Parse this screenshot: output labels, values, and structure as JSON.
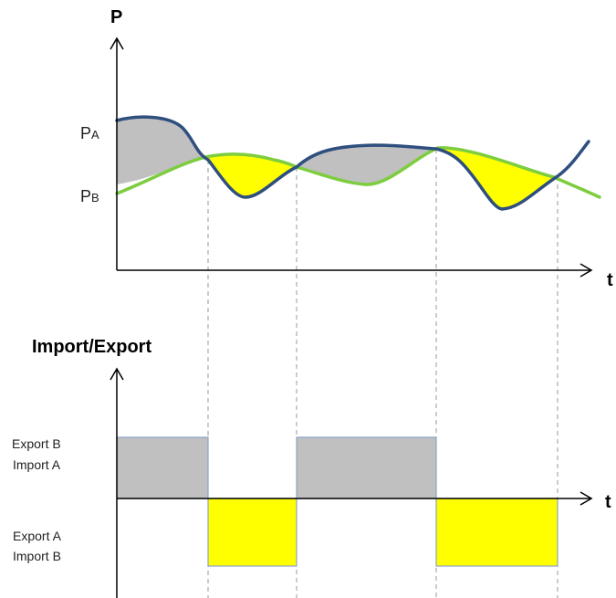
{
  "top_chart": {
    "y_axis_title": "P",
    "x_axis_title": "t",
    "level_a": {
      "main": "P",
      "sub": "A"
    },
    "level_b": {
      "main": "P",
      "sub": "B"
    }
  },
  "bottom_chart": {
    "y_axis_title": "Import/Export",
    "x_axis_title": "t",
    "upper_state": {
      "line1": "Export B",
      "line2": "Import A"
    },
    "lower_state": {
      "line1": "Export A",
      "line2": "Import B"
    }
  },
  "colors": {
    "curve_a": "#2f4f7f",
    "curve_b": "#7dcd3f",
    "surplus_fill": "#c0c0c0",
    "deficit_fill": "#ffff00",
    "guide_line": "#9a9a9a",
    "axis": "#000000",
    "block_border": "#8aa4c8"
  }
}
